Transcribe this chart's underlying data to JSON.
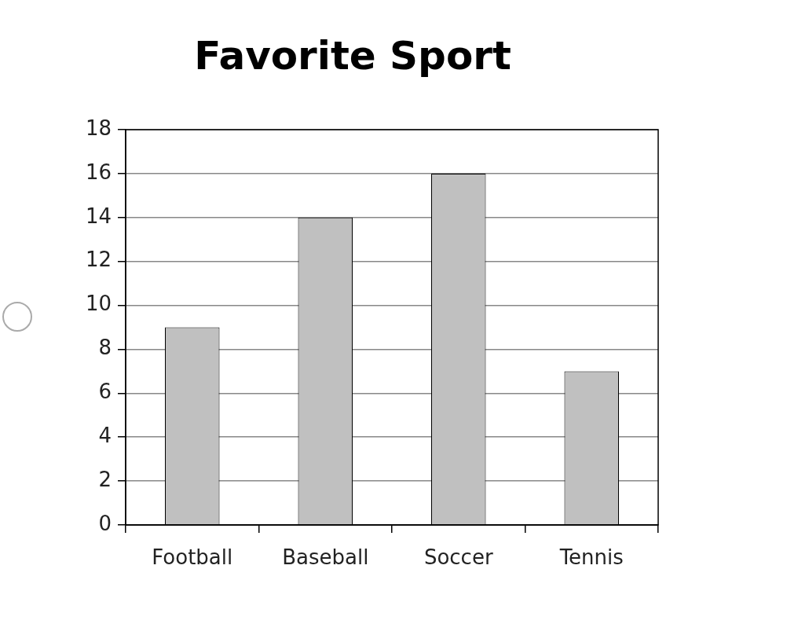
{
  "chart_data": {
    "type": "bar",
    "title": "Favorite Sport",
    "categories": [
      "Football",
      "Baseball",
      "Soccer",
      "Tennis"
    ],
    "values": [
      9,
      14,
      16,
      7
    ],
    "color": "#c0c0c0",
    "ylim": [
      0,
      18
    ],
    "yticks": [
      0,
      2,
      4,
      6,
      8,
      10,
      12,
      14,
      16,
      18
    ],
    "grid": "y"
  }
}
